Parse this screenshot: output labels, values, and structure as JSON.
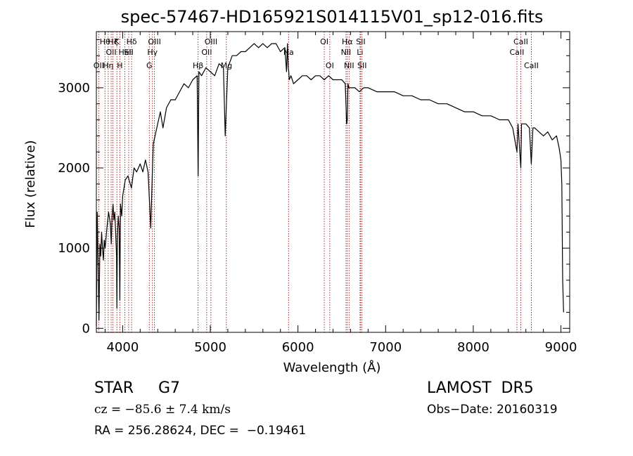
{
  "chart_data": {
    "type": "line",
    "title": "spec-57467-HD165921S014115V01_sp12-016.fits",
    "xlabel": "Wavelength (Å)",
    "ylabel": "Flux (relative)",
    "xlim": [
      3700,
      9100
    ],
    "ylim": [
      -50,
      3700
    ],
    "xticks": [
      4000,
      5000,
      6000,
      7000,
      8000,
      9000
    ],
    "yticks": [
      0,
      1000,
      2000,
      3000
    ],
    "grid": false,
    "series": [
      {
        "x": [
          3700,
          3710,
          3720,
          3730,
          3740,
          3750,
          3760,
          3770,
          3780,
          3790,
          3800,
          3820,
          3840,
          3860,
          3870,
          3880,
          3890,
          3900,
          3910,
          3920,
          3930,
          3934,
          3940,
          3950,
          3960,
          3968,
          3975,
          3990,
          4000,
          4030,
          4060,
          4100,
          4130,
          4160,
          4200,
          4230,
          4260,
          4290,
          4310,
          4320,
          4330,
          4340,
          4350,
          4380,
          4400,
          4430,
          4460,
          4500,
          4550,
          4600,
          4650,
          4700,
          4750,
          4800,
          4850,
          4861,
          4870,
          4900,
          4950,
          5000,
          5050,
          5100,
          5150,
          5170,
          5200,
          5250,
          5300,
          5350,
          5400,
          5450,
          5500,
          5550,
          5600,
          5650,
          5700,
          5750,
          5800,
          5850,
          5870,
          5880,
          5890,
          5895,
          5900,
          5920,
          5950,
          6000,
          6050,
          6100,
          6150,
          6200,
          6250,
          6300,
          6350,
          6400,
          6450,
          6500,
          6540,
          6555,
          6563,
          6570,
          6580,
          6600,
          6650,
          6700,
          6750,
          6800,
          6900,
          7000,
          7100,
          7200,
          7300,
          7400,
          7500,
          7600,
          7700,
          7800,
          7900,
          8000,
          8100,
          8200,
          8300,
          8400,
          8450,
          8498,
          8510,
          8542,
          8550,
          8600,
          8640,
          8662,
          8680,
          8700,
          8750,
          8800,
          8850,
          8900,
          8950,
          8980,
          9000,
          9010,
          9020,
          9030
        ],
        "values": [
          30,
          1450,
          800,
          100,
          1050,
          900,
          1200,
          1000,
          850,
          1100,
          1000,
          1250,
          1450,
          1300,
          1050,
          1400,
          1550,
          1350,
          1450,
          1200,
          900,
          250,
          1150,
          1400,
          1250,
          350,
          1550,
          1400,
          1650,
          1850,
          1900,
          1750,
          2000,
          1950,
          2050,
          1950,
          2100,
          1950,
          1500,
          1250,
          1600,
          2000,
          2300,
          2450,
          2550,
          2700,
          2500,
          2750,
          2850,
          2850,
          2950,
          3050,
          3000,
          3100,
          3150,
          1900,
          3200,
          3150,
          3250,
          3200,
          3150,
          3300,
          3250,
          2400,
          3250,
          3400,
          3400,
          3450,
          3450,
          3500,
          3550,
          3500,
          3550,
          3500,
          3550,
          3550,
          3450,
          3500,
          3200,
          3550,
          3250,
          3200,
          3100,
          3150,
          3050,
          3100,
          3150,
          3150,
          3100,
          3150,
          3150,
          3100,
          3150,
          3100,
          3100,
          3100,
          3050,
          2550,
          2600,
          3050,
          3000,
          3000,
          3000,
          2950,
          3000,
          3000,
          2950,
          2950,
          2950,
          2900,
          2900,
          2850,
          2850,
          2800,
          2800,
          2750,
          2700,
          2700,
          2650,
          2650,
          2600,
          2600,
          2500,
          2200,
          2550,
          2000,
          2550,
          2550,
          2500,
          2050,
          2500,
          2500,
          2450,
          2400,
          2450,
          2350,
          2400,
          2250,
          2100,
          1800,
          600,
          200
        ]
      }
    ],
    "lines": [
      {
        "x": 3727,
        "label": "OII",
        "row": 3
      },
      {
        "x": 3798,
        "label": "Hθ",
        "row": 1
      },
      {
        "x": 3835,
        "label": "Hη",
        "row": 3
      },
      {
        "x": 3869,
        "label": "OII",
        "row": 2
      },
      {
        "x": 3889,
        "label": "Hζ",
        "row": 1
      },
      {
        "x": 3934,
        "label": "K",
        "row": 1
      },
      {
        "x": 3968,
        "label": "H",
        "row": 3
      },
      {
        "x": 4026,
        "label": "HeI",
        "row": 2
      },
      {
        "x": 4069,
        "label": "SII",
        "row": 2
      },
      {
        "x": 4102,
        "label": "Hδ",
        "row": 1
      },
      {
        "x": 4304,
        "label": "G",
        "row": 3
      },
      {
        "x": 4340,
        "label": "Hγ",
        "row": 2
      },
      {
        "x": 4363,
        "label": "OIII",
        "row": 1
      },
      {
        "x": 4861,
        "label": "Hβ",
        "row": 3
      },
      {
        "x": 4959,
        "label": "OII",
        "row": 2
      },
      {
        "x": 5007,
        "label": "OIII",
        "row": 1
      },
      {
        "x": 5183,
        "label": "Mg",
        "row": 3
      },
      {
        "x": 5893,
        "label": "Na",
        "row": 2
      },
      {
        "x": 6300,
        "label": "OI",
        "row": 1
      },
      {
        "x": 6363,
        "label": "OI",
        "row": 3
      },
      {
        "x": 6548,
        "label": "NII",
        "row": 2
      },
      {
        "x": 6563,
        "label": "Hα",
        "row": 1
      },
      {
        "x": 6583,
        "label": "NII",
        "row": 3
      },
      {
        "x": 6708,
        "label": "Li",
        "row": 2
      },
      {
        "x": 6716,
        "label": "SII",
        "row": 1
      },
      {
        "x": 6731,
        "label": "SII",
        "row": 3
      },
      {
        "x": 8498,
        "label": "CaII",
        "row": 2
      },
      {
        "x": 8542,
        "label": "CaII",
        "row": 1
      },
      {
        "x": 8662,
        "label": "CaII",
        "row": 3
      }
    ],
    "colors": {
      "line": "#000000",
      "marker": "#8b0000"
    }
  },
  "info": {
    "class_line": "STAR     G7",
    "survey": "LAMOST  DR5",
    "cz": "cz = −85.6 ± 7.4 km/s",
    "obs_date": "Obs−Date: 20160319",
    "radec": "RA = 256.28624, DEC =  −0.19461"
  }
}
